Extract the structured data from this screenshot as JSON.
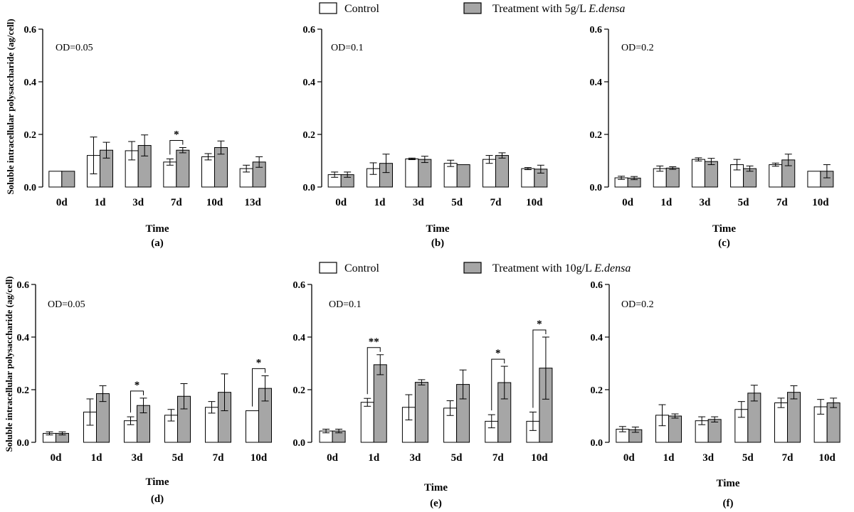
{
  "legends": [
    {
      "control": "Control",
      "treatment_prefix": "Treatment with 5g/L ",
      "treatment_italic": "E.densa"
    },
    {
      "control": "Control",
      "treatment_prefix": "Treatment with 10g/L ",
      "treatment_italic": "E.densa"
    }
  ],
  "colors": {
    "control": "#ffffff",
    "treatment": "#a6a6a6",
    "stroke": "#000000"
  },
  "ylabel": "Soluble intracellular polysaccharide (ag/cell)",
  "chart_data": [
    {
      "type": "bar",
      "letter": "(a)",
      "od": "OD=0.05",
      "xlabel": "Time",
      "categories": [
        "0d",
        "1d",
        "3d",
        "7d",
        "10d",
        "13d"
      ],
      "ylim": [
        0,
        0.6
      ],
      "yticks": [
        "0.0",
        "0.2",
        "0.4",
        "0.6"
      ],
      "series": [
        {
          "name": "Control",
          "values": [
            0.06,
            0.12,
            0.138,
            0.095,
            0.115,
            0.07
          ],
          "errors": [
            0,
            0.07,
            0.035,
            0.012,
            0.012,
            0.013
          ]
        },
        {
          "name": "Treatment with 5g/L E.densa",
          "values": [
            0.06,
            0.14,
            0.158,
            0.14,
            0.15,
            0.095
          ],
          "errors": [
            0,
            0.03,
            0.04,
            0.01,
            0.025,
            0.02
          ]
        }
      ],
      "significance": [
        {
          "category": "7d",
          "mark": "*"
        }
      ]
    },
    {
      "type": "bar",
      "letter": "(b)",
      "od": "OD=0.1",
      "xlabel": "Time",
      "categories": [
        "0d",
        "1d",
        "3d",
        "5d",
        "7d",
        "10d"
      ],
      "ylim": [
        0,
        0.6
      ],
      "yticks": [
        "0.0",
        "0.2",
        "0.4",
        "0.6"
      ],
      "series": [
        {
          "name": "Control",
          "values": [
            0.047,
            0.07,
            0.107,
            0.09,
            0.105,
            0.07
          ],
          "errors": [
            0.01,
            0.022,
            0.003,
            0.012,
            0.015,
            0.004
          ]
        },
        {
          "name": "Treatment with 5g/L E.densa",
          "values": [
            0.047,
            0.09,
            0.105,
            0.085,
            0.12,
            0.068
          ],
          "errors": [
            0.01,
            0.035,
            0.012,
            0,
            0.01,
            0.015
          ]
        }
      ],
      "significance": []
    },
    {
      "type": "bar",
      "letter": "(c)",
      "od": "OD=0.2",
      "xlabel": "Time",
      "categories": [
        "0d",
        "1d",
        "3d",
        "5d",
        "7d",
        "10d"
      ],
      "ylim": [
        0,
        0.6
      ],
      "yticks": [
        "0.0",
        "0.2",
        "0.4",
        "0.6"
      ],
      "series": [
        {
          "name": "Control",
          "values": [
            0.035,
            0.07,
            0.105,
            0.085,
            0.085,
            0.06
          ],
          "errors": [
            0.006,
            0.01,
            0.006,
            0.02,
            0.006,
            0
          ]
        },
        {
          "name": "Treatment with 5g/L E.densa",
          "values": [
            0.034,
            0.072,
            0.097,
            0.07,
            0.103,
            0.06
          ],
          "errors": [
            0.006,
            0.005,
            0.012,
            0.01,
            0.022,
            0.025
          ]
        }
      ],
      "significance": []
    },
    {
      "type": "bar",
      "letter": "(d)",
      "od": "OD=0.05",
      "xlabel": "Time",
      "categories": [
        "0d",
        "1d",
        "3d",
        "5d",
        "7d",
        "10d"
      ],
      "ylim": [
        0,
        0.6
      ],
      "yticks": [
        "0.0",
        "0.2",
        "0.4",
        "0.6"
      ],
      "series": [
        {
          "name": "Control",
          "values": [
            0.034,
            0.115,
            0.082,
            0.103,
            0.133,
            0.12
          ],
          "errors": [
            0.006,
            0.05,
            0.015,
            0.022,
            0.022,
            0
          ]
        },
        {
          "name": "Treatment with 10g/L E.densa",
          "values": [
            0.034,
            0.185,
            0.14,
            0.175,
            0.19,
            0.205
          ],
          "errors": [
            0.006,
            0.03,
            0.028,
            0.048,
            0.07,
            0.048
          ]
        }
      ],
      "significance": [
        {
          "category": "3d",
          "mark": "*"
        },
        {
          "category": "10d",
          "mark": "*"
        }
      ]
    },
    {
      "type": "bar",
      "letter": "(e)",
      "od": "OD=0.1",
      "xlabel": "Time",
      "categories": [
        "0d",
        "1d",
        "3d",
        "5d",
        "7d",
        "10d"
      ],
      "ylim": [
        0,
        0.6
      ],
      "yticks": [
        "0.0",
        "0.2",
        "0.4",
        "0.6"
      ],
      "series": [
        {
          "name": "Control",
          "values": [
            0.043,
            0.152,
            0.133,
            0.13,
            0.08,
            0.08
          ],
          "errors": [
            0.007,
            0.015,
            0.048,
            0.028,
            0.025,
            0.035
          ]
        },
        {
          "name": "Treatment with 10g/L E.densa",
          "values": [
            0.043,
            0.295,
            0.228,
            0.22,
            0.227,
            0.282
          ],
          "errors": [
            0.007,
            0.038,
            0.01,
            0.055,
            0.062,
            0.118
          ]
        }
      ],
      "significance": [
        {
          "category": "1d",
          "mark": "**"
        },
        {
          "category": "7d",
          "mark": "*"
        },
        {
          "category": "10d",
          "mark": "*"
        }
      ]
    },
    {
      "type": "bar",
      "letter": "(f)",
      "od": "OD=0.2",
      "xlabel": "Time",
      "categories": [
        "0d",
        "1d",
        "3d",
        "5d",
        "7d",
        "10d"
      ],
      "ylim": [
        0,
        0.6
      ],
      "yticks": [
        "0.0",
        "0.2",
        "0.4",
        "0.6"
      ],
      "series": [
        {
          "name": "Control",
          "values": [
            0.05,
            0.103,
            0.082,
            0.125,
            0.15,
            0.135
          ],
          "errors": [
            0.01,
            0.04,
            0.015,
            0.03,
            0.018,
            0.028
          ]
        },
        {
          "name": "Treatment with 10g/L E.densa",
          "values": [
            0.048,
            0.1,
            0.087,
            0.187,
            0.19,
            0.15
          ],
          "errors": [
            0.01,
            0.008,
            0.01,
            0.03,
            0.025,
            0.018
          ]
        }
      ],
      "significance": []
    }
  ]
}
